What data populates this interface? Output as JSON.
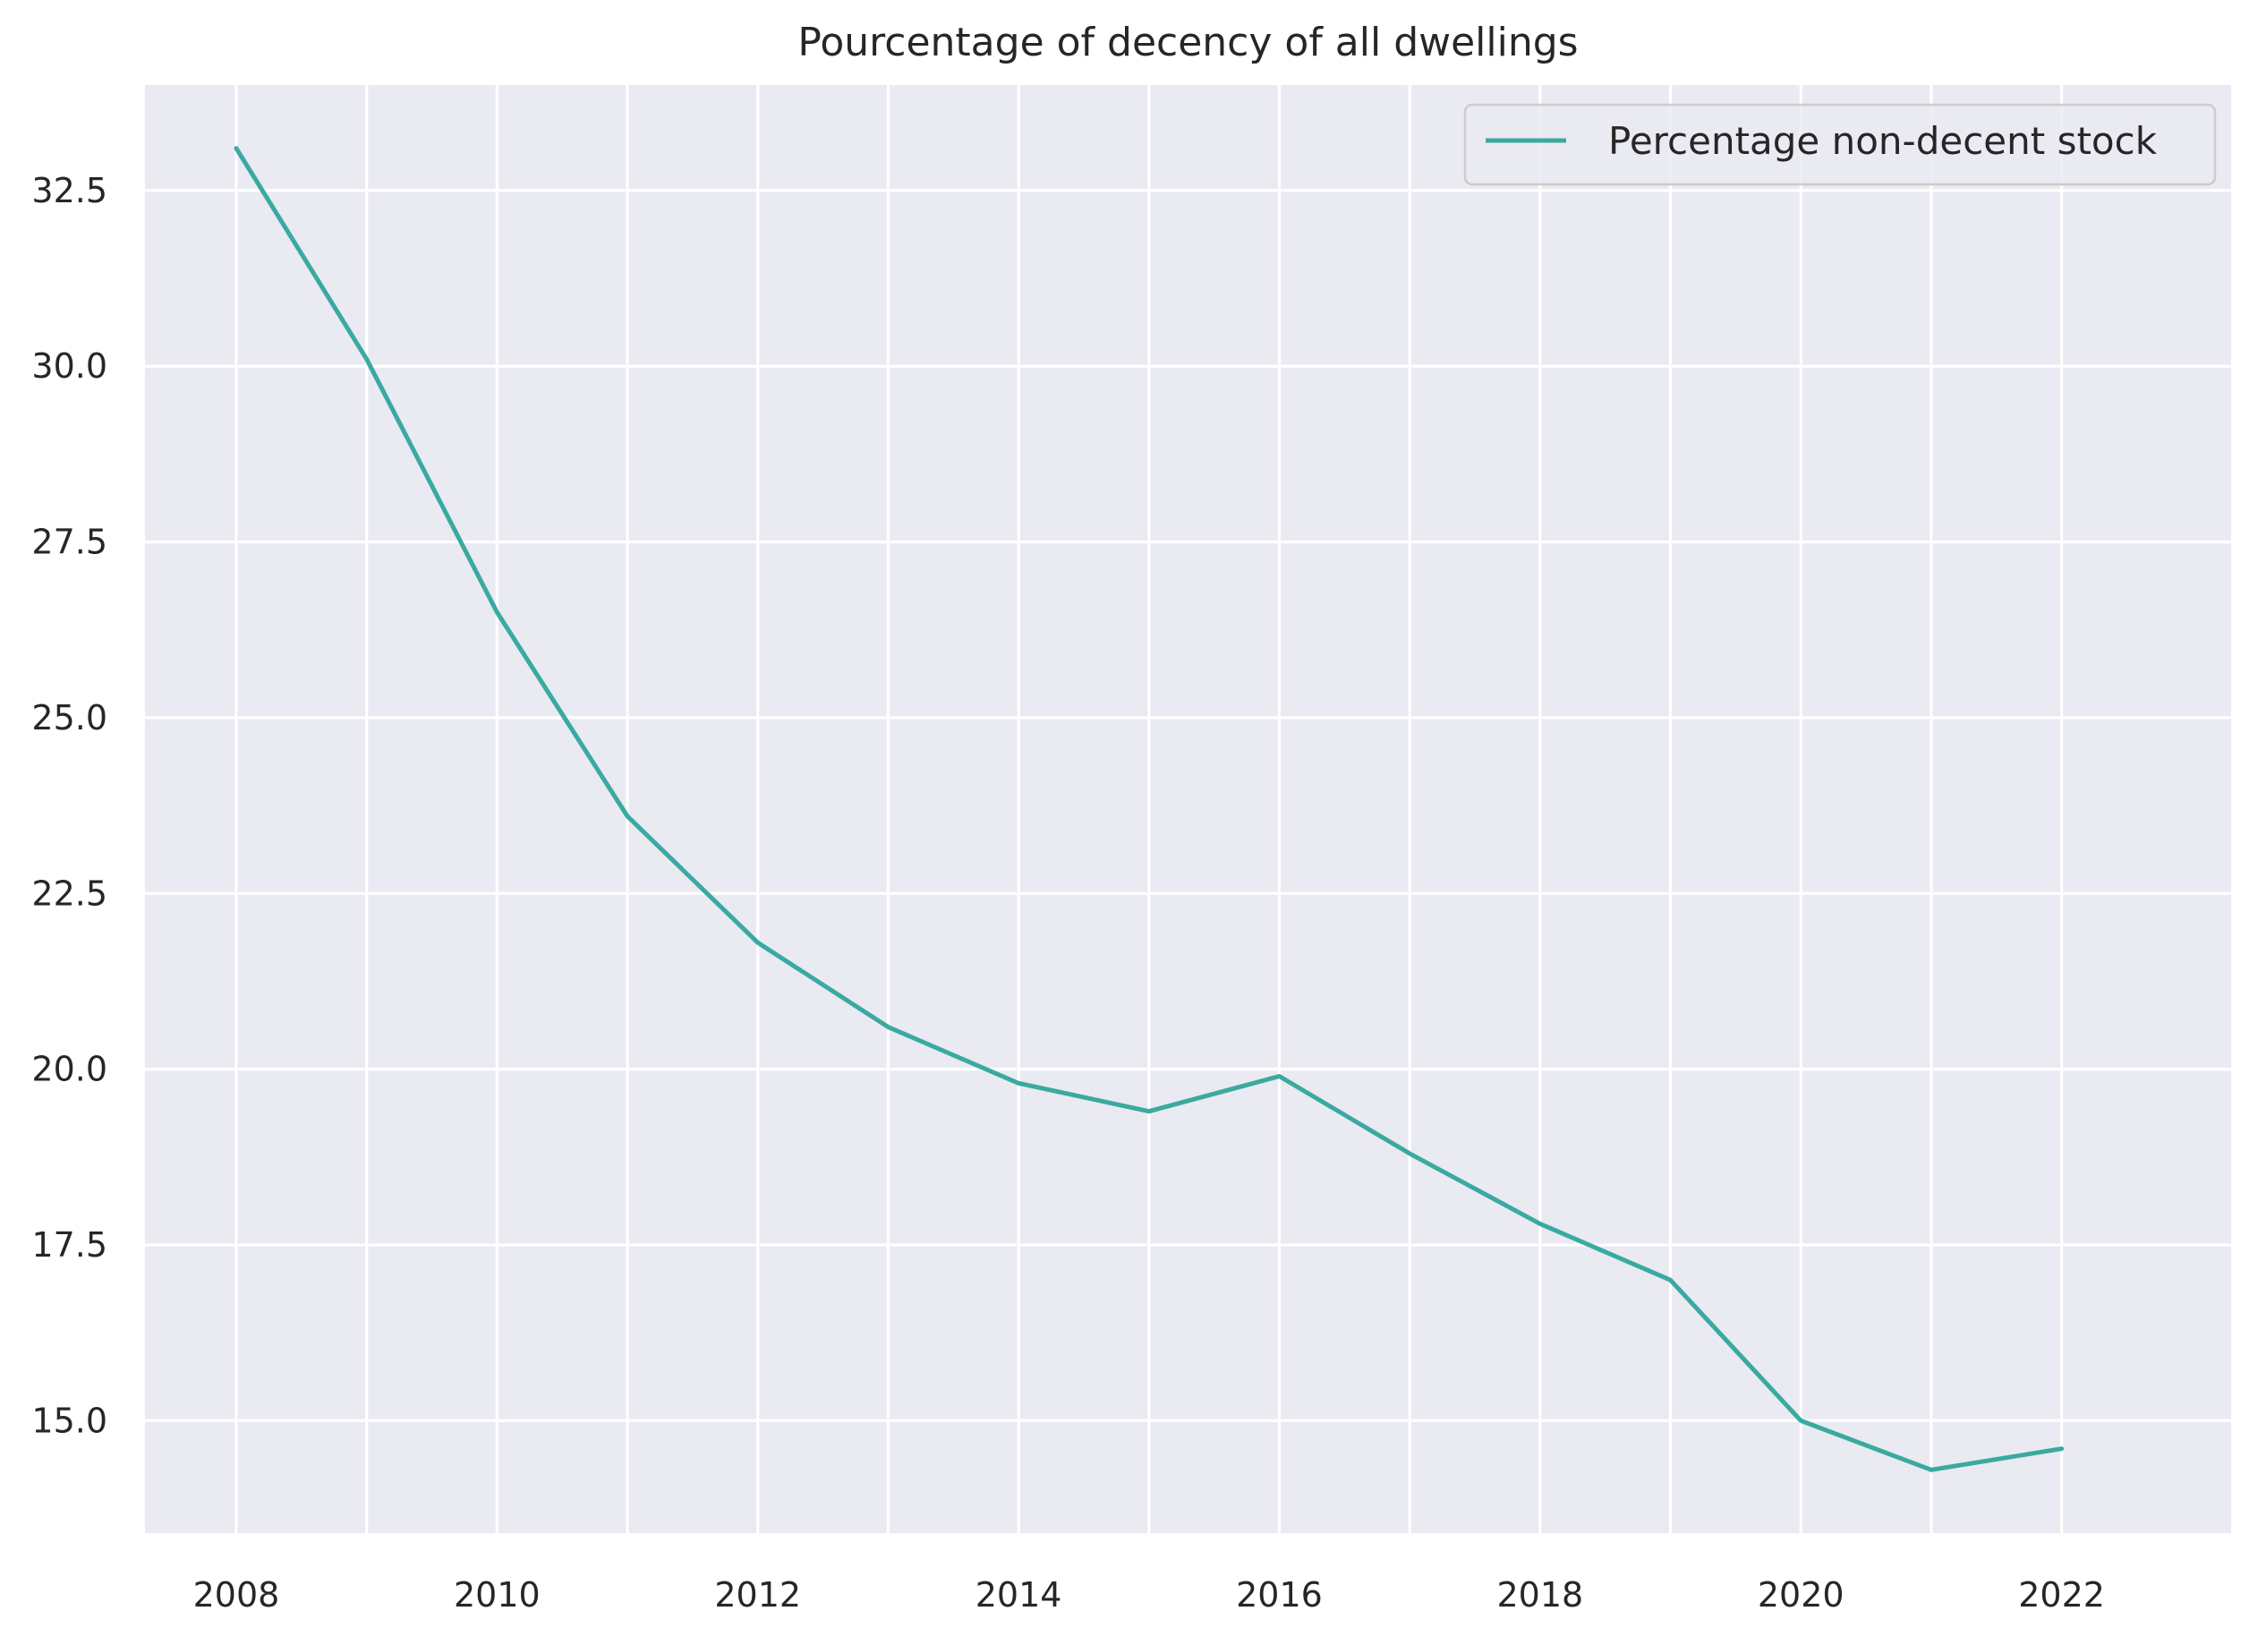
{
  "chart_data": {
    "type": "line",
    "title": "Pourcentage of decency of all dwellings",
    "xlabel": "",
    "ylabel": "",
    "x": [
      2008,
      2009,
      2010,
      2011,
      2012,
      2013,
      2014,
      2015,
      2016,
      2017,
      2018,
      2019,
      2020,
      2021,
      2022
    ],
    "series": [
      {
        "name": "Percentage non-decent stock",
        "values": [
          33.1,
          30.1,
          26.5,
          23.6,
          21.8,
          20.6,
          19.8,
          19.4,
          19.9,
          18.8,
          17.8,
          17.0,
          15.0,
          14.3,
          14.6
        ],
        "color": "#3aaaa0"
      }
    ],
    "xlim": [
      2007.3,
      2023.3
    ],
    "ylim": [
      13.4,
      34.0
    ],
    "xticks": [
      2008,
      2010,
      2012,
      2014,
      2016,
      2018,
      2020,
      2022
    ],
    "xtick_labels": [
      "2008",
      "2010",
      "2012",
      "2014",
      "2016",
      "2018",
      "2020",
      "2022"
    ],
    "xgrid": [
      2008,
      2009,
      2010,
      2011,
      2012,
      2013,
      2014,
      2015,
      2016,
      2017,
      2018,
      2019,
      2020,
      2021,
      2022
    ],
    "yticks": [
      15.0,
      17.5,
      20.0,
      22.5,
      25.0,
      27.5,
      30.0,
      32.5
    ],
    "ytick_labels": [
      "15.0",
      "17.5",
      "20.0",
      "22.5",
      "25.0",
      "27.5",
      "30.0",
      "32.5"
    ],
    "grid": true,
    "legend_position": "top-right",
    "colors": {
      "plot_background": "#eaeaf2",
      "grid": "#ffffff",
      "text": "#262626"
    }
  }
}
